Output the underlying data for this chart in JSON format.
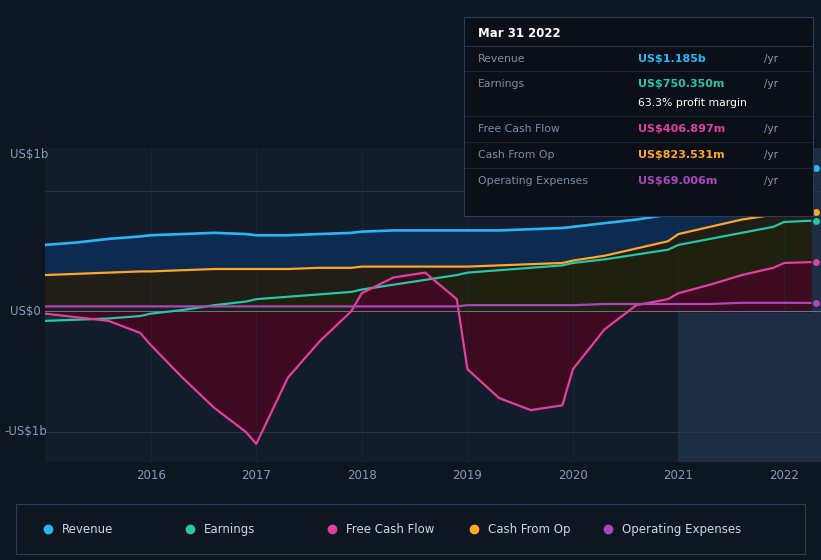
{
  "background_color": "#0e1621",
  "plot_bg_color": "#131c2b",
  "grid_color": "#1e2d42",
  "years": [
    2015.0,
    2015.3,
    2015.6,
    2015.9,
    2016.0,
    2016.3,
    2016.6,
    2016.9,
    2017.0,
    2017.3,
    2017.6,
    2017.9,
    2018.0,
    2018.3,
    2018.6,
    2018.9,
    2019.0,
    2019.3,
    2019.6,
    2019.9,
    2020.0,
    2020.3,
    2020.6,
    2020.9,
    2021.0,
    2021.3,
    2021.6,
    2021.9,
    2022.0,
    2022.25
  ],
  "revenue": [
    0.55,
    0.57,
    0.6,
    0.62,
    0.63,
    0.64,
    0.65,
    0.64,
    0.63,
    0.63,
    0.64,
    0.65,
    0.66,
    0.67,
    0.67,
    0.67,
    0.67,
    0.67,
    0.68,
    0.69,
    0.7,
    0.73,
    0.76,
    0.8,
    0.86,
    0.94,
    1.02,
    1.12,
    1.18,
    1.185
  ],
  "earnings": [
    -0.08,
    -0.07,
    -0.06,
    -0.04,
    -0.02,
    0.01,
    0.05,
    0.08,
    0.1,
    0.12,
    0.14,
    0.16,
    0.18,
    0.22,
    0.26,
    0.3,
    0.32,
    0.34,
    0.36,
    0.38,
    0.4,
    0.43,
    0.47,
    0.51,
    0.55,
    0.6,
    0.65,
    0.7,
    0.74,
    0.75
  ],
  "free_cash_flow": [
    -0.02,
    -0.05,
    -0.08,
    -0.18,
    -0.28,
    -0.55,
    -0.8,
    -1.0,
    -1.1,
    -0.55,
    -0.25,
    0.0,
    0.15,
    0.28,
    0.32,
    0.1,
    -0.48,
    -0.72,
    -0.82,
    -0.78,
    -0.48,
    -0.15,
    0.05,
    0.1,
    0.15,
    0.22,
    0.3,
    0.36,
    0.4,
    0.407
  ],
  "cash_from_op": [
    0.3,
    0.31,
    0.32,
    0.33,
    0.33,
    0.34,
    0.35,
    0.35,
    0.35,
    0.35,
    0.36,
    0.36,
    0.37,
    0.37,
    0.37,
    0.37,
    0.37,
    0.38,
    0.39,
    0.4,
    0.42,
    0.46,
    0.52,
    0.58,
    0.64,
    0.7,
    0.76,
    0.8,
    0.82,
    0.824
  ],
  "operating_expenses": [
    0.04,
    0.04,
    0.04,
    0.04,
    0.04,
    0.04,
    0.04,
    0.04,
    0.04,
    0.04,
    0.04,
    0.04,
    0.04,
    0.04,
    0.04,
    0.04,
    0.05,
    0.05,
    0.05,
    0.05,
    0.05,
    0.06,
    0.06,
    0.06,
    0.06,
    0.06,
    0.07,
    0.07,
    0.07,
    0.069
  ],
  "revenue_color": "#29b6f6",
  "earnings_color": "#26c6a8",
  "free_cash_flow_color": "#e040a0",
  "cash_from_op_color": "#ffa726",
  "operating_expenses_color": "#ab47bc",
  "ylim": [
    -1.25,
    1.35
  ],
  "xlim": [
    2015.0,
    2022.35
  ],
  "ytick_positions": [
    -1.0,
    0.0,
    1.0
  ],
  "ytick_labels": [
    "-US$1b",
    "US$0",
    "US$1b"
  ],
  "xtick_positions": [
    2016,
    2017,
    2018,
    2019,
    2020,
    2021,
    2022
  ],
  "xtick_labels": [
    "2016",
    "2017",
    "2018",
    "2019",
    "2020",
    "2021",
    "2022"
  ],
  "highlight_x_start": 2021.0,
  "tooltip_date": "Mar 31 2022",
  "tooltip_rows": [
    {
      "label": "Revenue",
      "value": "US$1.185b",
      "suffix": " /yr",
      "color": "#29b6f6",
      "extra": null
    },
    {
      "label": "Earnings",
      "value": "US$750.350m",
      "suffix": " /yr",
      "color": "#26c6a8",
      "extra": "63.3% profit margin"
    },
    {
      "label": "Free Cash Flow",
      "value": "US$406.897m",
      "suffix": " /yr",
      "color": "#e040a0",
      "extra": null
    },
    {
      "label": "Cash From Op",
      "value": "US$823.531m",
      "suffix": " /yr",
      "color": "#ffa726",
      "extra": null
    },
    {
      "label": "Operating Expenses",
      "value": "US$69.006m",
      "suffix": " /yr",
      "color": "#ab47bc",
      "extra": null
    }
  ],
  "legend_items": [
    "Revenue",
    "Earnings",
    "Free Cash Flow",
    "Cash From Op",
    "Operating Expenses"
  ],
  "legend_colors": [
    "#29b6f6",
    "#26c6a8",
    "#e040a0",
    "#ffa726",
    "#ab47bc"
  ]
}
